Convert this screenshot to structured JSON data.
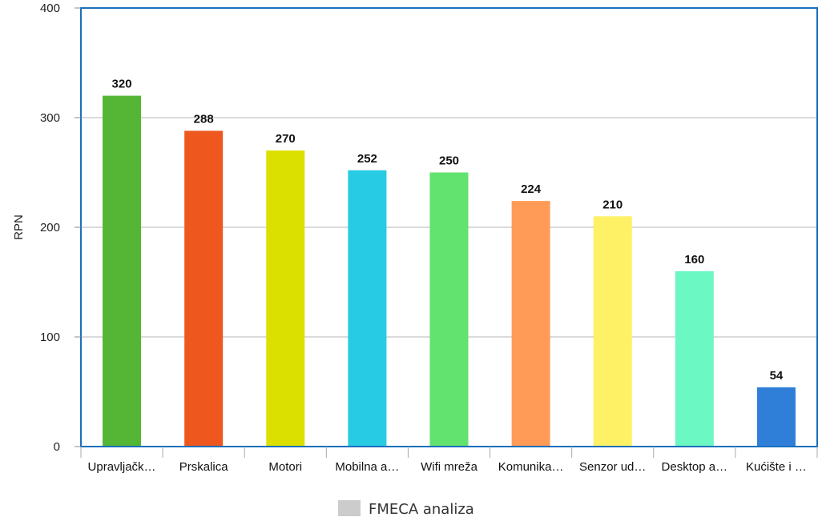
{
  "chart_data": {
    "type": "bar",
    "categories": [
      "Upravljačk…",
      "Prskalica",
      "Motori",
      "Mobilna a…",
      "Wifi mreža",
      "Komunika…",
      "Senzor ud…",
      "Desktop a…",
      "Kućište i …"
    ],
    "values": [
      320,
      288,
      270,
      252,
      250,
      224,
      210,
      160,
      54
    ],
    "data_labels": [
      "320",
      "288",
      "270",
      "252",
      "250",
      "224",
      "210",
      "160",
      "54"
    ],
    "colors": [
      "#55b535",
      "#ee581e",
      "#dce000",
      "#27cbe3",
      "#62e26e",
      "#ff9a57",
      "#fef165",
      "#6cf8c2",
      "#2f7fd9"
    ],
    "ylabel": "RPN",
    "xlabel": "",
    "ylim": [
      0,
      400
    ],
    "yticks": [
      0,
      100,
      200,
      300,
      400
    ],
    "ytick_labels": [
      "0",
      "100",
      "200",
      "300",
      "400"
    ],
    "grid": true,
    "legend": {
      "label": "FMECA analiza",
      "color": "#cccccc",
      "position": "bottom-center"
    },
    "plot_border_color": "#1a6fbd",
    "grid_color": "#b5b5b5"
  }
}
